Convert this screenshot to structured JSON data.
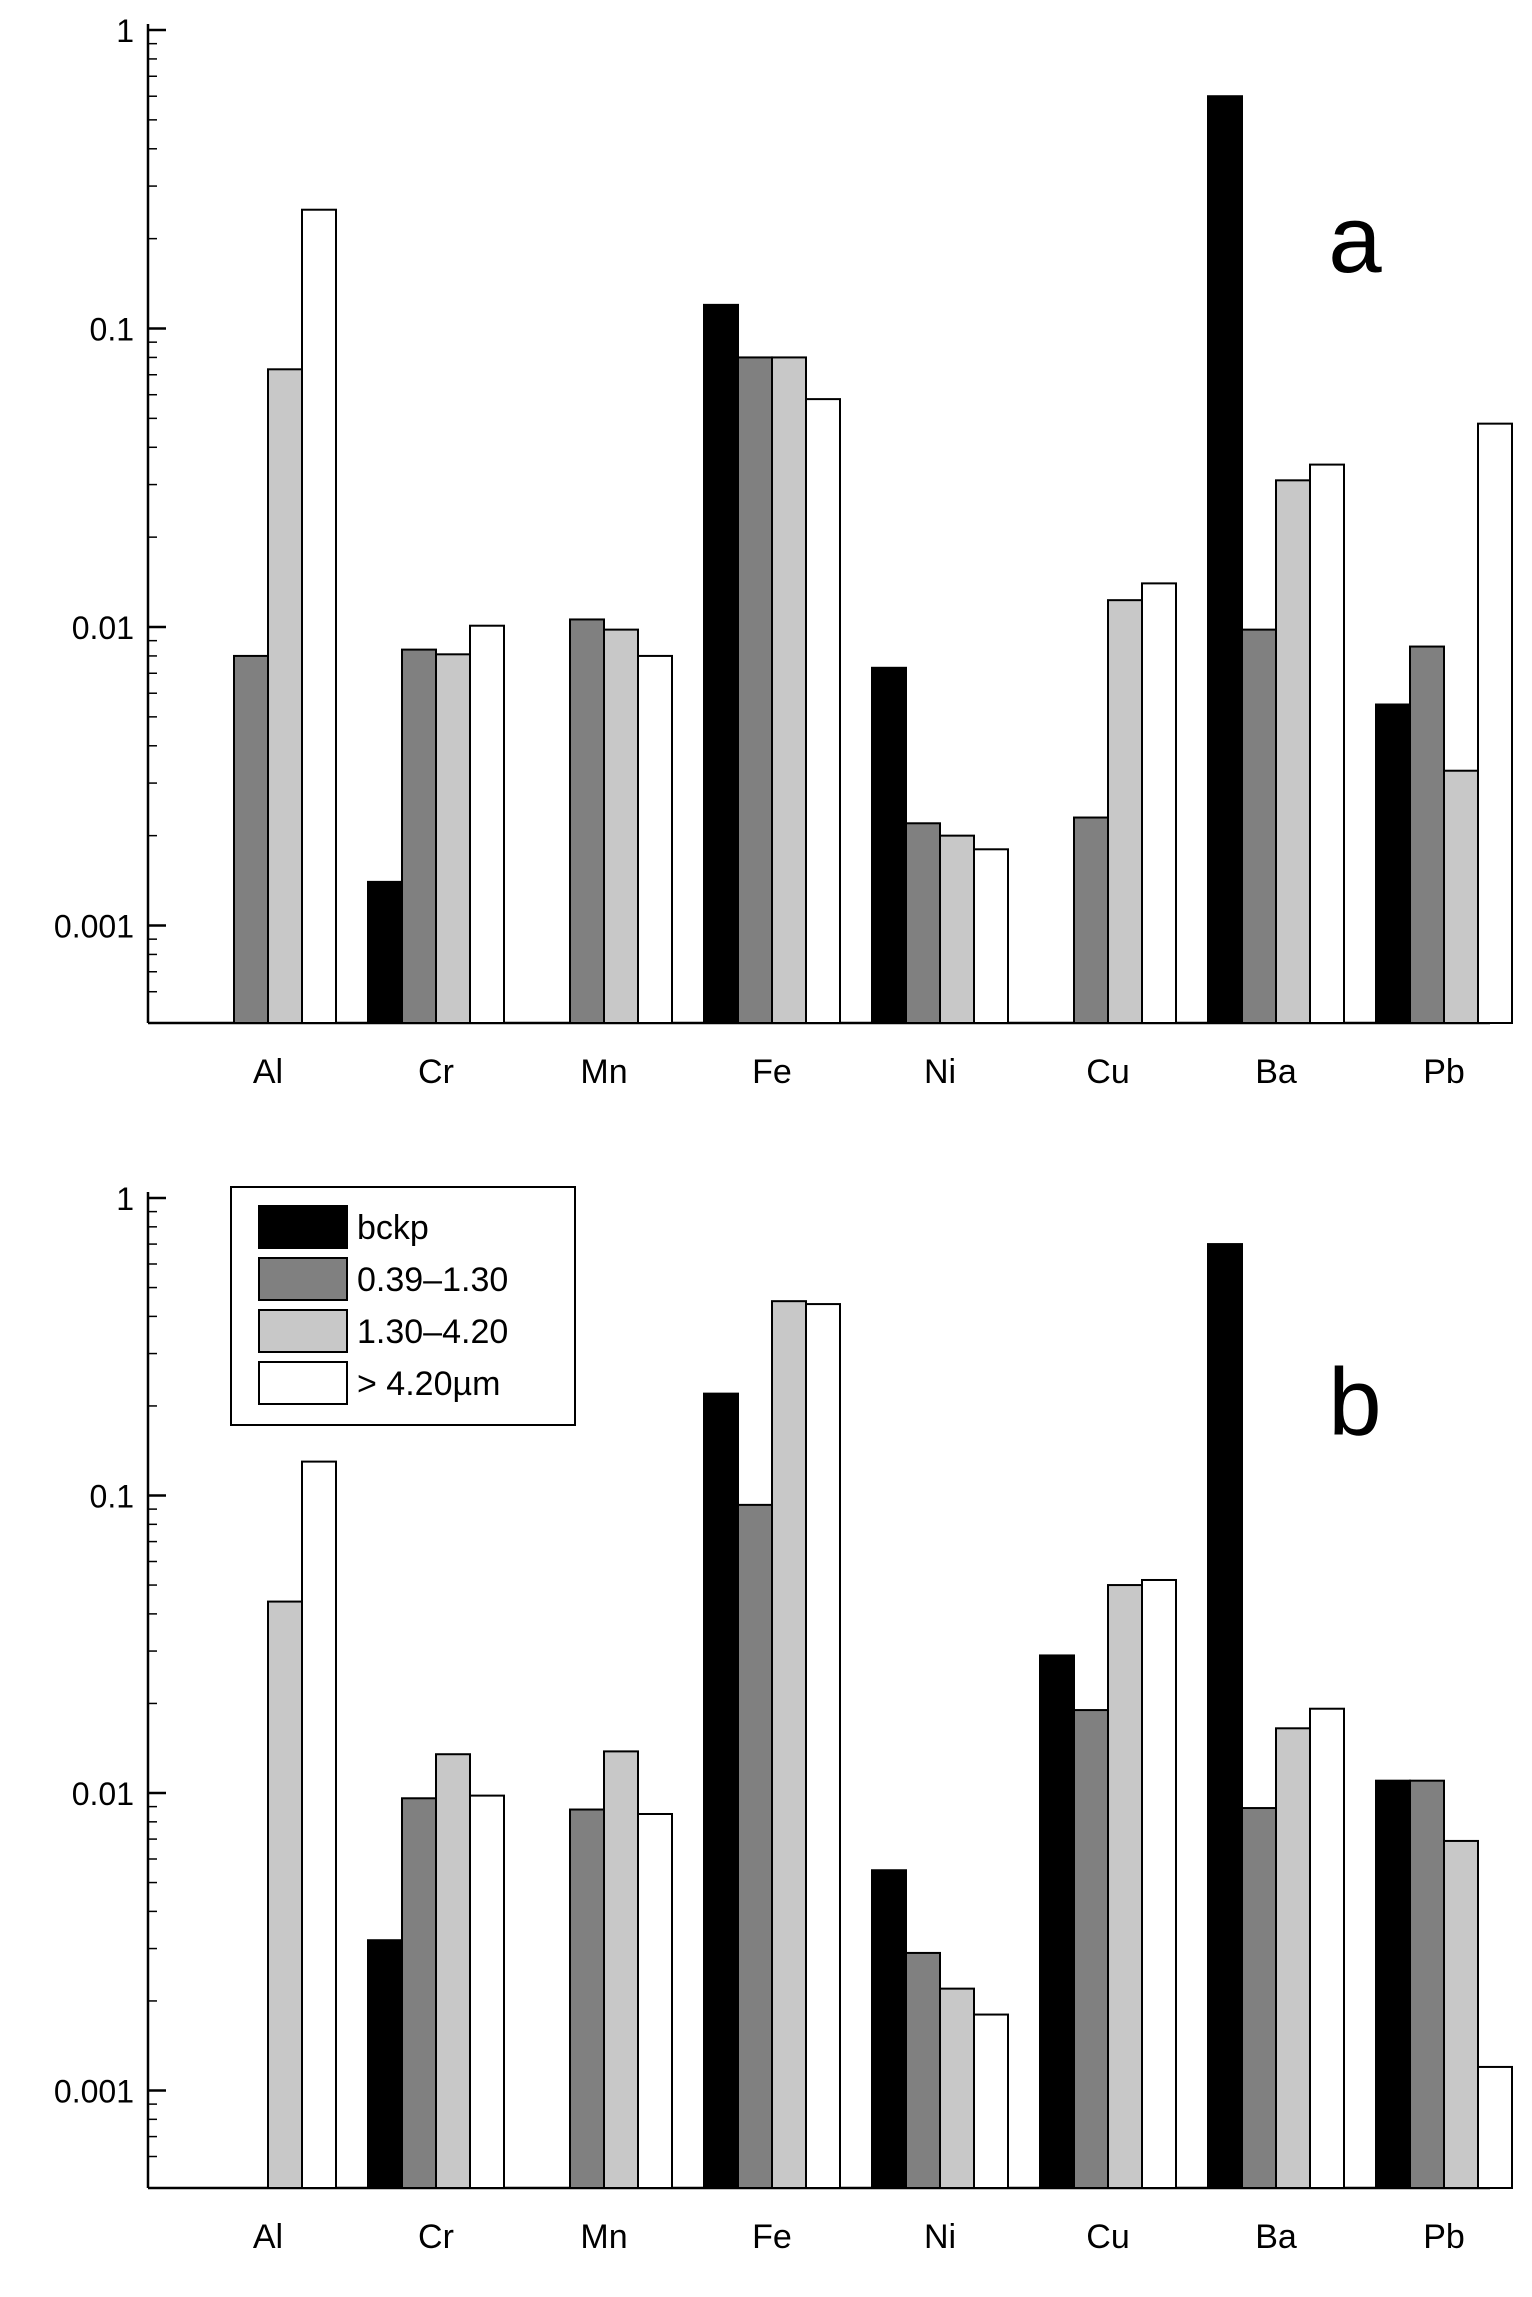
{
  "chart_data": [
    {
      "type": "bar",
      "panel_label": "a",
      "yscale": "log",
      "ylim": [
        0.0005,
        1
      ],
      "yticks": [
        {
          "value": 1,
          "label": "1"
        },
        {
          "value": 0.1,
          "label": "0.1"
        },
        {
          "value": 0.01,
          "label": "0.01"
        },
        {
          "value": 0.001,
          "label": "0.001"
        }
      ],
      "categories": [
        "Al",
        "Cr",
        "Mn",
        "Fe",
        "Ni",
        "Cu",
        "Ba",
        "Pb"
      ],
      "series": [
        {
          "name": "bckp",
          "color": "#000000",
          "values": [
            null,
            0.0014,
            null,
            0.12,
            0.0073,
            null,
            0.6,
            0.0055
          ]
        },
        {
          "name": "0.39–1.30",
          "color": "#808080",
          "values": [
            0.008,
            0.0084,
            0.0106,
            0.08,
            0.0022,
            0.0023,
            0.0098,
            0.0086
          ]
        },
        {
          "name": "1.30–4.20",
          "color": "#c8c8c8",
          "values": [
            0.073,
            0.0081,
            0.0098,
            0.08,
            0.002,
            0.0123,
            0.031,
            0.0033
          ]
        },
        {
          "name": "> 4.20µm",
          "color": "#ffffff",
          "values": [
            0.25,
            0.0101,
            0.008,
            0.058,
            0.0018,
            0.014,
            0.035,
            0.048
          ]
        }
      ],
      "title": "",
      "xlabel": "",
      "ylabel": ""
    },
    {
      "type": "bar",
      "panel_label": "b",
      "yscale": "log",
      "ylim": [
        0.0005,
        1
      ],
      "yticks": [
        {
          "value": 1,
          "label": "1"
        },
        {
          "value": 0.1,
          "label": "0.1"
        },
        {
          "value": 0.01,
          "label": "0.01"
        },
        {
          "value": 0.001,
          "label": "0.001"
        }
      ],
      "categories": [
        "Al",
        "Cr",
        "Mn",
        "Fe",
        "Ni",
        "Cu",
        "Ba",
        "Pb"
      ],
      "series": [
        {
          "name": "bckp",
          "color": "#000000",
          "values": [
            null,
            0.0032,
            null,
            0.22,
            0.0055,
            0.029,
            0.7,
            0.011
          ]
        },
        {
          "name": "0.39–1.30",
          "color": "#808080",
          "values": [
            null,
            0.0096,
            0.0088,
            0.093,
            0.0029,
            0.019,
            0.0089,
            0.011
          ]
        },
        {
          "name": "1.30–4.20",
          "color": "#c8c8c8",
          "values": [
            0.044,
            0.0135,
            0.0138,
            0.45,
            0.0022,
            0.05,
            0.0165,
            0.0069
          ]
        },
        {
          "name": "> 4.20µm",
          "color": "#ffffff",
          "values": [
            0.13,
            0.0098,
            0.0085,
            0.44,
            0.0018,
            0.052,
            0.0192,
            0.0012
          ]
        }
      ],
      "legend_position": "top-left",
      "title": "",
      "xlabel": "",
      "ylabel": ""
    }
  ]
}
